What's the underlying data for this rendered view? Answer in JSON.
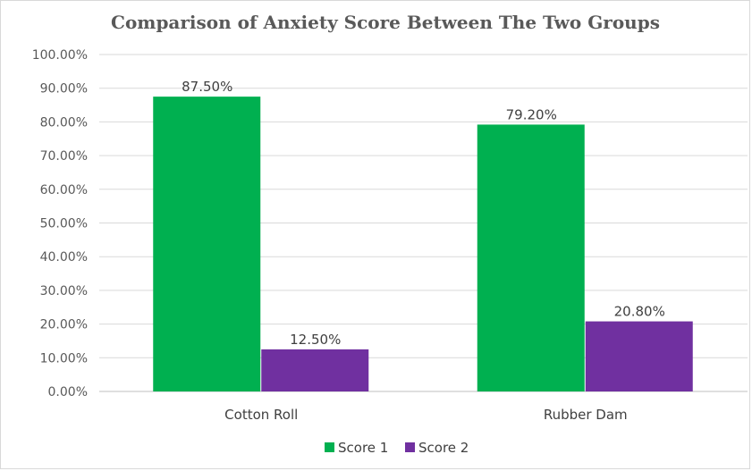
{
  "chart_data": {
    "type": "bar",
    "title": "Comparison of Anxiety Score Between The Two Groups",
    "xlabel": "",
    "ylabel": "",
    "categories": [
      "Cotton Roll",
      "Rubber Dam"
    ],
    "series": [
      {
        "name": "Score 1",
        "color": "#00b050",
        "values": [
          87.5,
          79.2
        ],
        "labels": [
          "87.50%",
          "79.20%"
        ]
      },
      {
        "name": "Score 2",
        "color": "#7030a0",
        "values": [
          12.5,
          20.8
        ],
        "labels": [
          "12.50%",
          "20.80%"
        ]
      }
    ],
    "ylim": [
      0,
      100
    ],
    "yticks": [
      0,
      10,
      20,
      30,
      40,
      50,
      60,
      70,
      80,
      90,
      100
    ],
    "ytick_labels": [
      "0.00%",
      "10.00%",
      "20.00%",
      "30.00%",
      "40.00%",
      "50.00%",
      "60.00%",
      "70.00%",
      "80.00%",
      "90.00%",
      "100.00%"
    ],
    "grid": true,
    "legend_position": "bottom"
  }
}
